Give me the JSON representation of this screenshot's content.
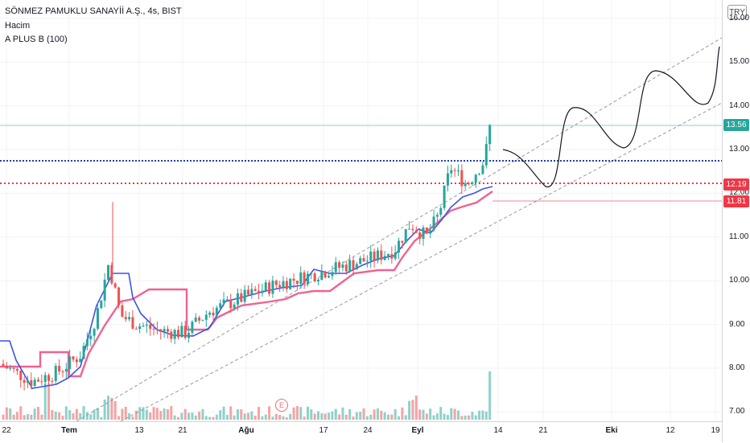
{
  "legend": {
    "symbol": "SÖNMEZ PAMUKLU SANAYİİ A.Ş., 4s, BIST",
    "volume": "Hacim",
    "indicator": "A PLUS B (100)"
  },
  "currency": "TRY",
  "earnings_marker": "E",
  "y_axis": [
    "16.00",
    "15.00",
    "14.00",
    "13.00",
    "12.00",
    "11.00",
    "10.00",
    "9.00",
    "8.00",
    "7.00"
  ],
  "x_axis": [
    {
      "label": "22",
      "bold": false
    },
    {
      "label": "Tem",
      "bold": true
    },
    {
      "label": "13",
      "bold": false
    },
    {
      "label": "21",
      "bold": false
    },
    {
      "label": "Ağu",
      "bold": true
    },
    {
      "label": "17",
      "bold": false
    },
    {
      "label": "24",
      "bold": false
    },
    {
      "label": "Eyl",
      "bold": true
    },
    {
      "label": "14",
      "bold": false
    },
    {
      "label": "21",
      "bold": false
    },
    {
      "label": "Eki",
      "bold": true
    },
    {
      "label": "12",
      "bold": false
    },
    {
      "label": "19",
      "bold": false
    }
  ],
  "price_tags": [
    {
      "value": "13.56",
      "color": "#26a69a"
    },
    {
      "value": "12.19",
      "color": "#f23645"
    },
    {
      "value": "11.81",
      "color": "#f23645"
    }
  ],
  "colors": {
    "up": "#26a69a",
    "down": "#ef5350",
    "blue_line": "#3f51e6",
    "pink_line": "#f06292",
    "channel": "#9598a1",
    "dotted_blue": "#1e3fb4",
    "dotted_red": "#f23645"
  }
}
